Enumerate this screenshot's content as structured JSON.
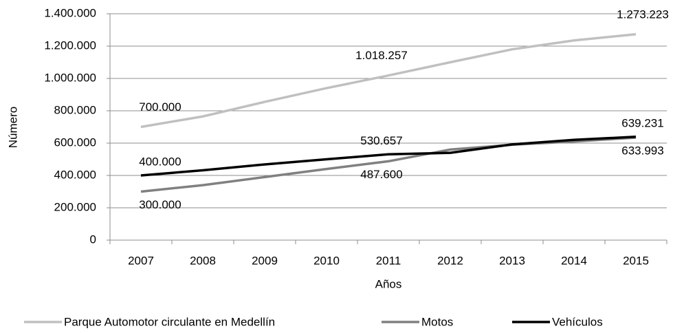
{
  "chart_data": {
    "type": "line",
    "x_label": "Años",
    "y_label": "Número",
    "categories": [
      "2007",
      "2008",
      "2009",
      "2010",
      "2011",
      "2012",
      "2013",
      "2014",
      "2015"
    ],
    "series": [
      {
        "name": "Parque Automotor circulante en Medellín",
        "color": "#c0c0c0",
        "values": [
          700000,
          765000,
          855000,
          940000,
          1018257,
          1100000,
          1180000,
          1235000,
          1273223
        ],
        "value_labels": [
          "700.000",
          null,
          null,
          null,
          "1.018.257",
          null,
          null,
          null,
          "1.273.223"
        ]
      },
      {
        "name": "Motos",
        "color": "#808080",
        "values": [
          300000,
          340000,
          390000,
          440000,
          487600,
          560000,
          590000,
          610000,
          633993
        ],
        "value_labels": [
          "300.000",
          null,
          null,
          null,
          "487.600",
          null,
          null,
          null,
          "633.993"
        ]
      },
      {
        "name": "Vehículos",
        "color": "#000000",
        "values": [
          400000,
          432000,
          468000,
          500000,
          530657,
          540000,
          592000,
          620000,
          639231
        ],
        "value_labels": [
          "400.000",
          null,
          null,
          null,
          "530.657",
          null,
          null,
          null,
          "639.231"
        ]
      }
    ],
    "ylim": [
      0,
      1400000
    ],
    "yticks": [
      0,
      {
        "value": 200000,
        "label": "200.000"
      },
      {
        "value": 400000,
        "label": "400.000"
      },
      {
        "value": 600000,
        "label": "600.000"
      },
      {
        "value": 800000,
        "label": "800.000"
      },
      {
        "value": 1000000,
        "label": "1.000.000"
      },
      {
        "value": 1200000,
        "label": "1.200.000"
      },
      {
        "value": 1400000,
        "label": "1.400.000"
      }
    ],
    "grid": true,
    "legend": "bottom"
  }
}
